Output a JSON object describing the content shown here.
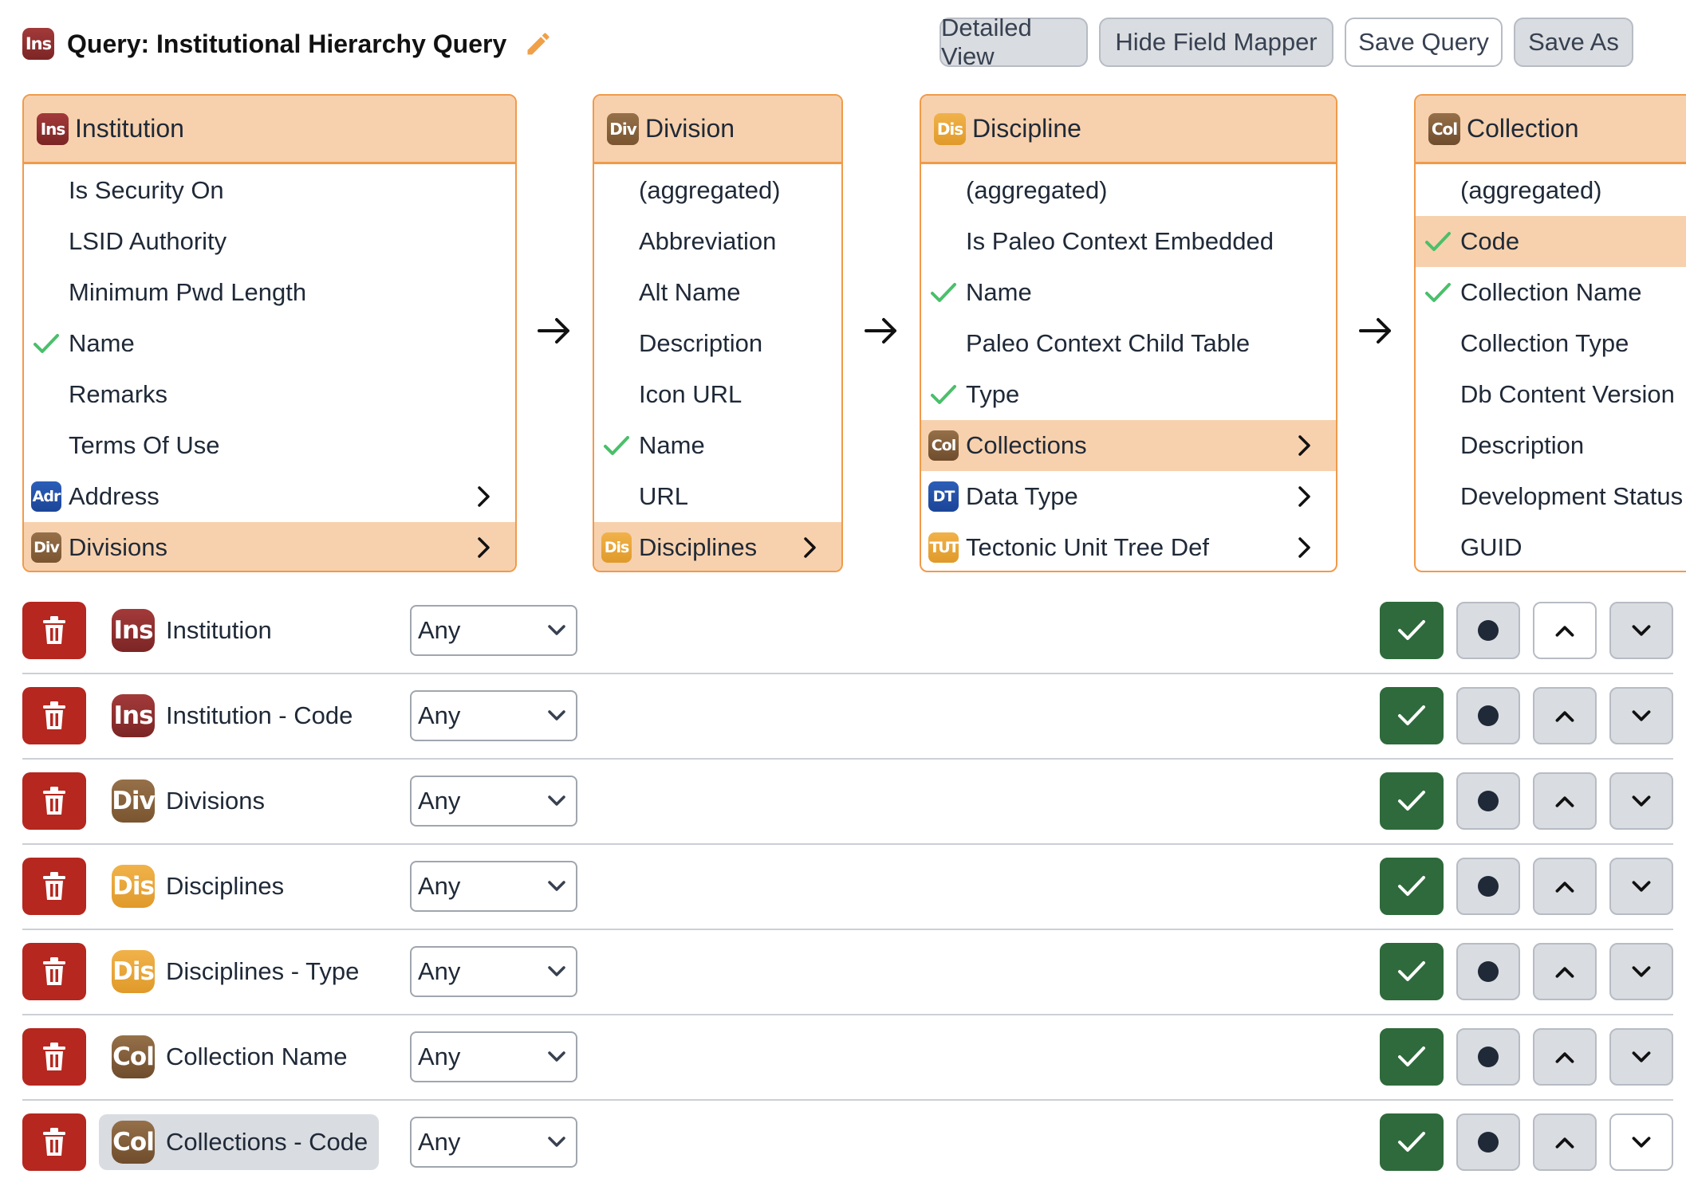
{
  "header": {
    "badge": "Ins",
    "title": "Query: Institutional Hierarchy Query",
    "buttons": {
      "detailed_view": "Detailed View",
      "hide_field_mapper": "Hide Field Mapper",
      "save_query": "Save Query",
      "save_as": "Save As"
    }
  },
  "panels": {
    "institution": {
      "badge": "Ins",
      "title": "Institution",
      "rows": [
        {
          "label": "Is Security On"
        },
        {
          "label": "LSID Authority"
        },
        {
          "label": "Minimum Pwd Length"
        },
        {
          "label": "Name",
          "checked": true
        },
        {
          "label": "Remarks"
        },
        {
          "label": "Terms Of Use"
        },
        {
          "label": "Address",
          "badge": "Adr",
          "icon": "address-icon",
          "relation": true
        },
        {
          "label": "Divisions",
          "badge": "Div",
          "icon": "division-icon",
          "relation": true,
          "selected": true
        }
      ]
    },
    "division": {
      "badge": "Div",
      "title": "Division",
      "rows": [
        {
          "label": "(aggregated)"
        },
        {
          "label": "Abbreviation"
        },
        {
          "label": "Alt Name"
        },
        {
          "label": "Description"
        },
        {
          "label": "Icon URL"
        },
        {
          "label": "Name",
          "checked": true
        },
        {
          "label": "URL"
        },
        {
          "label": "Disciplines",
          "badge": "Dis",
          "icon": "discipline-icon",
          "relation": true,
          "selected": true
        }
      ]
    },
    "discipline": {
      "badge": "Dis",
      "title": "Discipline",
      "rows": [
        {
          "label": "(aggregated)"
        },
        {
          "label": "Is Paleo Context Embedded"
        },
        {
          "label": "Name",
          "checked": true
        },
        {
          "label": "Paleo Context Child Table"
        },
        {
          "label": "Type",
          "checked": true
        },
        {
          "label": "Collections",
          "badge": "Col",
          "icon": "collection-icon",
          "relation": true,
          "selected": true
        },
        {
          "label": "Data Type",
          "badge": "DT",
          "icon": "data-type-icon",
          "relation": true
        },
        {
          "label": "Tectonic Unit Tree Def",
          "badge": "TUT",
          "icon": "tectonic-unit-icon",
          "relation": true
        }
      ]
    },
    "collection": {
      "badge": "Col",
      "title": "Collection",
      "rows": [
        {
          "label": "(aggregated)"
        },
        {
          "label": "Code",
          "checked": true,
          "selected": true
        },
        {
          "label": "Collection Name",
          "checked": true
        },
        {
          "label": "Collection Type"
        },
        {
          "label": "Db Content Version"
        },
        {
          "label": "Description"
        },
        {
          "label": "Development Status"
        },
        {
          "label": "GUID"
        }
      ]
    }
  },
  "query_lines": [
    {
      "badge": "Ins",
      "label": "Institution",
      "operator": "Any",
      "down_white": false,
      "up_white": true
    },
    {
      "badge": "Ins",
      "label": "Institution - Code",
      "operator": "Any"
    },
    {
      "badge": "Div",
      "label": "Divisions",
      "operator": "Any"
    },
    {
      "badge": "Dis",
      "label": "Disciplines",
      "operator": "Any"
    },
    {
      "badge": "Dis",
      "label": "Disciplines - Type",
      "operator": "Any"
    },
    {
      "badge": "Col",
      "label": "Collection Name",
      "operator": "Any"
    },
    {
      "badge": "Col",
      "label": "Collections - Code",
      "operator": "Any",
      "highlighted": true,
      "down_white": true
    }
  ],
  "colors": {
    "accent_orange": "#f19a4a",
    "selected_bg": "#f7d1ad",
    "delete_red": "#b5271f",
    "show_green": "#2e6a3b",
    "check_green": "#4bbf6b"
  }
}
